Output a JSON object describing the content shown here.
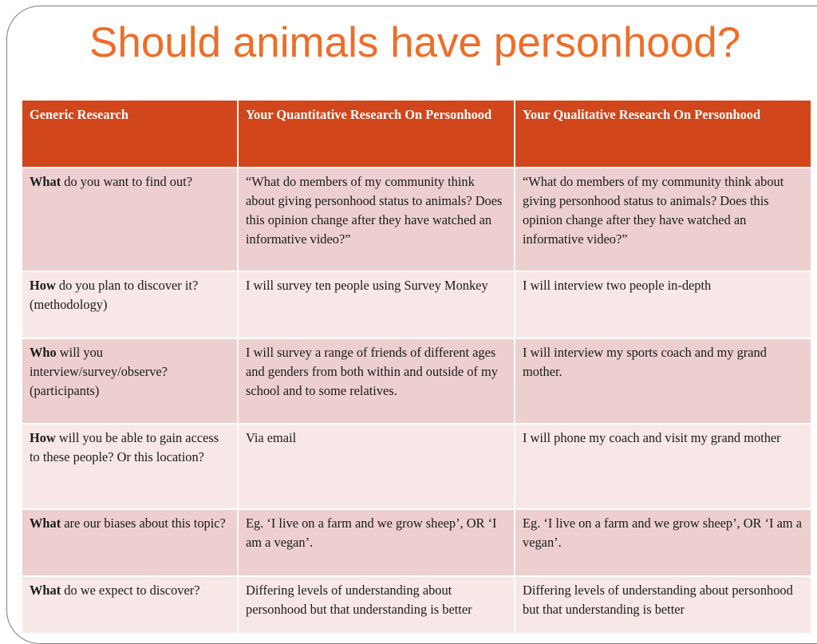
{
  "title": "Should animals have personhood?",
  "colors": {
    "title": "#ee6d28",
    "header_bg": "#d1461b",
    "row_odd": "#edcfcf",
    "row_even": "#f7e8e7"
  },
  "table": {
    "headers": [
      "Generic Research",
      "Your Quantitative Research On Personhood",
      "Your Qualitative Research On Personhood"
    ],
    "rows": [
      {
        "keyword": "What",
        "question": " do you want to find out?",
        "quantitative": "“What do members of my community think about giving personhood status to animals? Does this opinion change after they have watched an informative video?”",
        "qualitative": "“What do members of my community think about giving personhood status to animals? Does this opinion change after they have watched an informative video?”"
      },
      {
        "keyword": "How",
        "question": " do you plan to discover it? (methodology)",
        "quantitative": "I will survey ten people using Survey Monkey",
        "qualitative": "I will interview two people in-depth"
      },
      {
        "keyword": "Who",
        "question": " will you interview/survey/observe? (participants)",
        "quantitative": "I will survey a range of friends of different ages and genders from both within and outside of my school and to some relatives.",
        "qualitative": "I will interview my sports coach and my grand mother."
      },
      {
        "keyword": "How",
        "question": " will you be able to gain access to these people? Or this location?",
        "quantitative": "Via email",
        "qualitative": "I will phone my coach and visit my grand mother"
      },
      {
        "keyword": "What",
        "question": " are our biases about this topic?",
        "quantitative": "Eg. ‘I live on a farm and we grow sheep’, OR ‘I am a vegan’.",
        "qualitative": "Eg. ‘I live on a farm and we grow sheep’, OR ‘I am a vegan’."
      },
      {
        "keyword": "What",
        "question": " do we expect to discover?",
        "quantitative": "Differing levels of understanding about personhood but that understanding is better",
        "qualitative": "Differing levels of understanding about personhood but that understanding is better"
      }
    ]
  }
}
